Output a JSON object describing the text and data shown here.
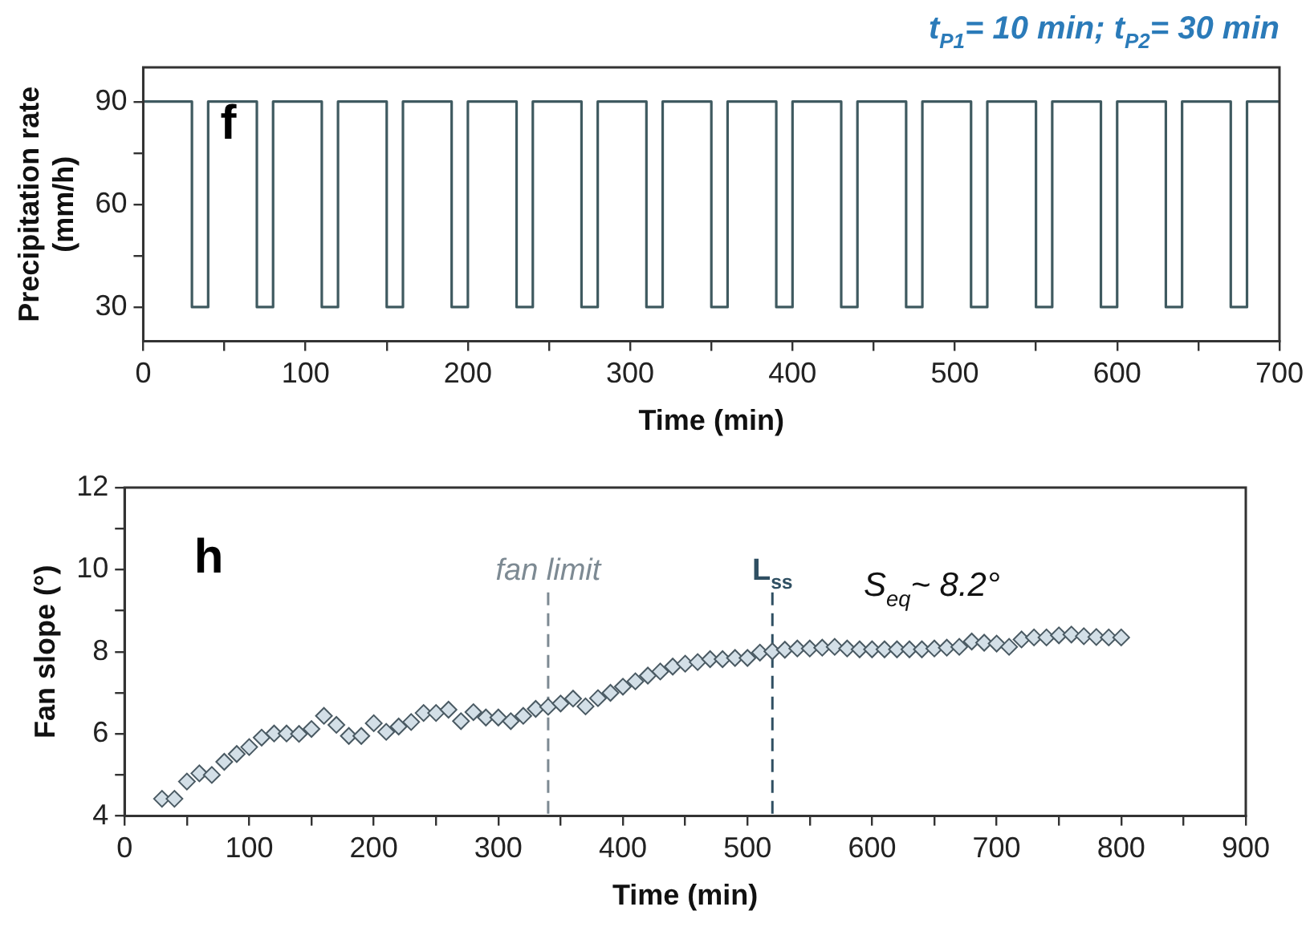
{
  "chart_data": [
    {
      "type": "step",
      "title": "t$_{P1}$= 10 min; t$_{P2}$= 30 min",
      "xlabel": "Time (min)",
      "ylabel": "Precipitation rate (mm/h)",
      "annotations": [
        "f"
      ],
      "x": [
        0,
        30,
        40,
        70,
        80,
        110,
        120,
        150,
        160,
        190,
        200,
        230,
        240,
        270,
        280,
        310,
        320,
        350,
        360,
        390,
        400,
        430,
        440,
        470,
        480,
        510,
        520,
        550,
        560,
        590,
        600,
        630,
        640,
        670,
        680,
        700
      ],
      "series": [
        {
          "color": "#3f5a60",
          "values": [
            90,
            30,
            90,
            30,
            90,
            30,
            90,
            30,
            90,
            30,
            90,
            30,
            90,
            30,
            90,
            30,
            90,
            30,
            90,
            30,
            90,
            30,
            90,
            30,
            90,
            30,
            90,
            30,
            90,
            30,
            90,
            30,
            90,
            30,
            90,
            90
          ]
        }
      ],
      "xlim": [
        0,
        700
      ],
      "xticks": [
        0,
        {
          "value": 50,
          "label": null
        },
        100,
        {
          "value": 150,
          "label": null
        },
        200,
        {
          "value": 250,
          "label": null
        },
        300,
        {
          "value": 350,
          "label": null
        },
        400,
        {
          "value": 450,
          "label": null
        },
        500,
        {
          "value": 550,
          "label": null
        },
        600,
        {
          "value": 650,
          "label": null
        },
        700
      ],
      "ylim": [
        20,
        100
      ],
      "yticks": [
        30,
        {
          "value": 45,
          "label": null
        },
        60,
        {
          "value": 75,
          "label": null
        },
        90
      ],
      "grid": false,
      "legend": false
    },
    {
      "type": "scatter",
      "xlabel": "Time (min)",
      "ylabel": "Fan slope (°)",
      "annotations": [
        "h",
        "S$_{eq}$~ 8.2°"
      ],
      "x": [
        30,
        40,
        50,
        60,
        70,
        80,
        90,
        100,
        110,
        120,
        130,
        140,
        150,
        160,
        170,
        180,
        190,
        200,
        210,
        220,
        230,
        240,
        250,
        260,
        270,
        280,
        290,
        300,
        310,
        320,
        330,
        340,
        350,
        360,
        370,
        380,
        390,
        400,
        410,
        420,
        430,
        440,
        450,
        460,
        470,
        480,
        490,
        500,
        510,
        520,
        530,
        540,
        550,
        560,
        570,
        580,
        590,
        600,
        610,
        620,
        630,
        640,
        650,
        660,
        670,
        680,
        690,
        700,
        710,
        720,
        730,
        740,
        750,
        760,
        770,
        780,
        790,
        800
      ],
      "series": [
        {
          "color": "#d3dfe7",
          "values": [
            4.42,
            4.42,
            4.84,
            5.04,
            5.0,
            5.32,
            5.51,
            5.68,
            5.91,
            6.01,
            6.01,
            6.0,
            6.12,
            6.44,
            6.22,
            5.95,
            5.95,
            6.26,
            6.05,
            6.18,
            6.29,
            6.51,
            6.51,
            6.59,
            6.31,
            6.53,
            6.4,
            6.4,
            6.31,
            6.44,
            6.61,
            6.66,
            6.74,
            6.86,
            6.67,
            6.87,
            7.0,
            7.15,
            7.28,
            7.42,
            7.52,
            7.64,
            7.71,
            7.75,
            7.82,
            7.82,
            7.85,
            7.85,
            7.98,
            8.01,
            8.05,
            8.08,
            8.08,
            8.1,
            8.12,
            8.08,
            8.06,
            8.06,
            8.06,
            8.06,
            8.06,
            8.06,
            8.08,
            8.1,
            8.12,
            8.25,
            8.22,
            8.2,
            8.12,
            8.3,
            8.35,
            8.35,
            8.4,
            8.42,
            8.38,
            8.36,
            8.35,
            8.35
          ]
        }
      ],
      "marker": "diamond",
      "ref_lines": [
        {
          "axis": "x",
          "value": 340,
          "label": "fan limit",
          "color": "#7d8a93",
          "line_style": "dashed"
        },
        {
          "axis": "x",
          "value": 520,
          "label": "L$_{ss}$",
          "color": "#2f4f62",
          "line_style": "dashed"
        }
      ],
      "xlim": [
        0,
        900
      ],
      "xticks": [
        0,
        {
          "value": 50,
          "label": null
        },
        100,
        {
          "value": 150,
          "label": null
        },
        200,
        {
          "value": 250,
          "label": null
        },
        300,
        {
          "value": 350,
          "label": null
        },
        400,
        {
          "value": 450,
          "label": null
        },
        500,
        {
          "value": 550,
          "label": null
        },
        600,
        {
          "value": 650,
          "label": null
        },
        700,
        {
          "value": 750,
          "label": null
        },
        800,
        {
          "value": 850,
          "label": null
        },
        900
      ],
      "ylim": [
        4,
        12
      ],
      "yticks": [
        4,
        {
          "value": 5,
          "label": null
        },
        6,
        {
          "value": 7,
          "label": null
        },
        8,
        {
          "value": 9,
          "label": null
        },
        10,
        {
          "value": 11,
          "label": null
        },
        12
      ],
      "grid": false,
      "legend": false
    }
  ]
}
